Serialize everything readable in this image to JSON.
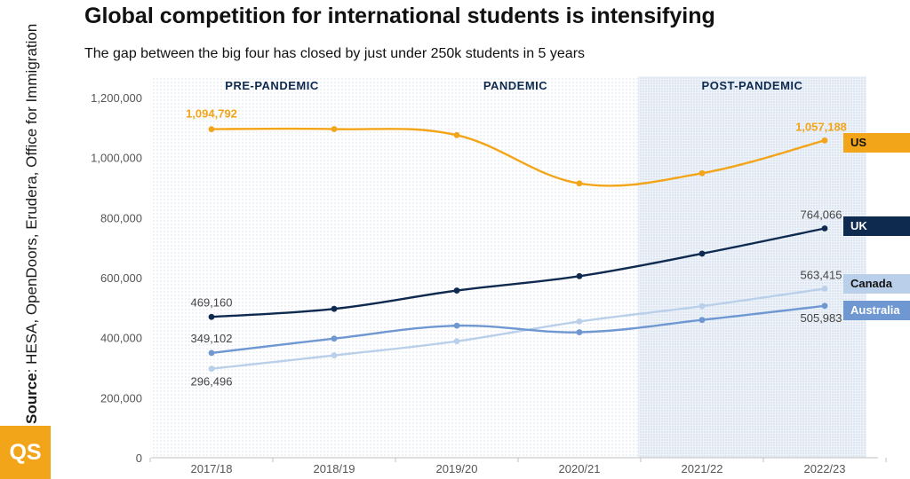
{
  "title": "Global competition for international students is intensifying",
  "subtitle": "The gap between the big four has closed by just under 250k students in 5 years",
  "source": {
    "label": "Source",
    "text": ": HESA, OpenDoors, Erudera, Office for Immigration"
  },
  "logo": "QS",
  "colors": {
    "US": "#f3a51a",
    "UK": "#0e2a4f",
    "Canada": "#b9cfea",
    "Australia": "#6f97d2"
  },
  "chart_data": {
    "type": "line",
    "categories": [
      "2017/18",
      "2018/19",
      "2019/20",
      "2020/21",
      "2021/22",
      "2022/23"
    ],
    "ylim": [
      0,
      1200000
    ],
    "yticks": [
      "0",
      "200,000",
      "400,000",
      "600,000",
      "800,000",
      "1,000,000",
      "1,200,000"
    ],
    "grid": false,
    "periods": [
      {
        "label": "PRE-PANDEMIC"
      },
      {
        "label": "PANDEMIC"
      },
      {
        "label": "POST-PANDEMIC"
      }
    ],
    "series": [
      {
        "name": "US",
        "values": [
          1094792,
          1095000,
          1075000,
          914000,
          948000,
          1057188
        ],
        "first_label": "1,094,792",
        "last_label": "1,057,188"
      },
      {
        "name": "UK",
        "values": [
          469160,
          496000,
          557000,
          605000,
          680000,
          764066
        ],
        "first_label": "469,160",
        "last_label": "764,066"
      },
      {
        "name": "Canada",
        "values": [
          296496,
          341000,
          388000,
          454000,
          505000,
          563415
        ],
        "first_label": "296,496",
        "last_label": "563,415"
      },
      {
        "name": "Australia",
        "values": [
          349102,
          397000,
          440000,
          418000,
          459000,
          505983
        ],
        "first_label": "349,102",
        "last_label": "505,983"
      }
    ]
  }
}
